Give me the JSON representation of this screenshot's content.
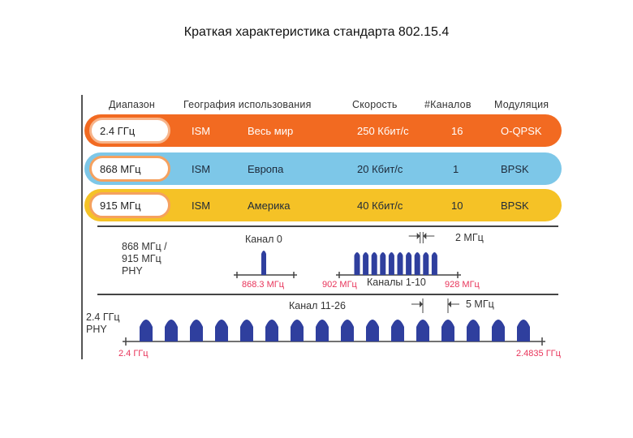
{
  "title": "Краткая характеристика стандарта 802.15.4",
  "headers": [
    "Диапазон",
    "География использования",
    "Скорость",
    "#Каналов",
    "Модуляция"
  ],
  "rows": [
    {
      "band": "2.4 ГГц",
      "ism": "ISM",
      "geo": "Весь мир",
      "speed": "250 Кбит/с",
      "channels": "16",
      "modulation": "O-QPSK",
      "color": "#f26a21",
      "text_color": "#ffffff"
    },
    {
      "band": "868 МГц",
      "ism": "ISM",
      "geo": "Европа",
      "speed": "20 Кбит/с",
      "channels": "1",
      "modulation": "BPSK",
      "color": "#7dc7e8",
      "text_color": "#1e2a3a"
    },
    {
      "band": "915 МГц",
      "ism": "ISM",
      "geo": "Америка",
      "speed": "40 Кбит/с",
      "channels": "10",
      "modulation": "BPSK",
      "color": "#f5c226",
      "text_color": "#1e2a3a"
    }
  ],
  "phy_868": {
    "label_line1": "868 МГц  /",
    "label_line2": "915 МГц",
    "label_line3": "PHY",
    "channel0_label": "Канал 0",
    "channel0_freq": "868.3 МГц",
    "start_freq": "902 МГц",
    "end_freq": "928 МГц",
    "channels_label": "Каналы 1-10",
    "spacing_label": "2 МГц",
    "pulse_count": 10
  },
  "phy_24": {
    "label_line1": "2.4 ГГц",
    "label_line2": "PHY",
    "channels_label": "Канал 11-26",
    "spacing_label": "5 МГц",
    "start_freq": "2.4 ГГц",
    "end_freq": "2.4835 ГГц",
    "pulse_count": 16
  },
  "colors": {
    "pulse": "#2f3f9e",
    "red_text": "#e8345a"
  }
}
